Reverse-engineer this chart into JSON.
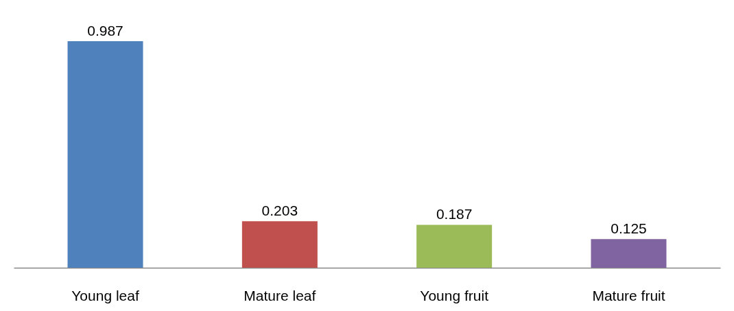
{
  "chart_data": {
    "type": "bar",
    "categories": [
      "Young leaf",
      "Mature leaf",
      "Young fruit",
      "Mature fruit"
    ],
    "values": [
      0.987,
      0.203,
      0.187,
      0.125
    ],
    "colors": [
      "#4f81bd",
      "#c0504d",
      "#9bbb59",
      "#8064a2"
    ],
    "data_labels": true,
    "grid": false
  }
}
